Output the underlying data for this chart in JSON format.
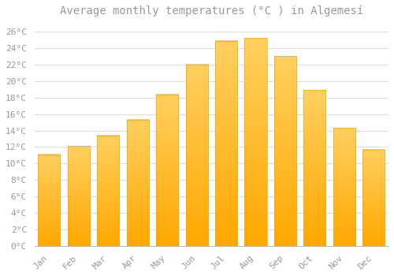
{
  "title": "Average monthly temperatures (°C ) in Algemesí",
  "months": [
    "Jan",
    "Feb",
    "Mar",
    "Apr",
    "May",
    "Jun",
    "Jul",
    "Aug",
    "Sep",
    "Oct",
    "Nov",
    "Dec"
  ],
  "temperatures": [
    11.1,
    12.1,
    13.4,
    15.3,
    18.4,
    22.0,
    24.9,
    25.2,
    23.0,
    18.9,
    14.3,
    11.7
  ],
  "bar_color_top": "#FFD966",
  "bar_color_bottom": "#FFA500",
  "bar_edge_color": "#FFA500",
  "ylim": [
    0,
    27
  ],
  "yticks": [
    0,
    2,
    4,
    6,
    8,
    10,
    12,
    14,
    16,
    18,
    20,
    22,
    24,
    26
  ],
  "ytick_labels": [
    "0°C",
    "2°C",
    "4°C",
    "6°C",
    "8°C",
    "10°C",
    "12°C",
    "14°C",
    "16°C",
    "18°C",
    "20°C",
    "22°C",
    "24°C",
    "26°C"
  ],
  "background_color": "#ffffff",
  "grid_color": "#dddddd",
  "title_fontsize": 10,
  "tick_fontsize": 8,
  "font_family": "monospace",
  "text_color": "#999999",
  "bar_width": 0.75
}
